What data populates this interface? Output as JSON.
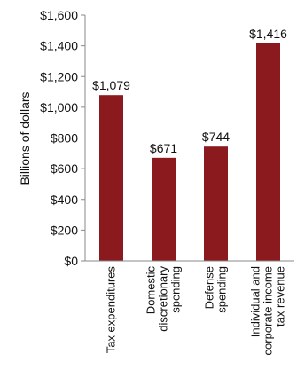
{
  "chart_data": {
    "type": "bar",
    "title": "",
    "xlabel": "",
    "ylabel": "Billions of dollars",
    "categories": [
      "Tax expenditures",
      "Domestic discretionary spending",
      "Defense spending",
      "Individual and corporate income tax revenue"
    ],
    "category_lines": [
      [
        "Tax expenditures"
      ],
      [
        "Domestic",
        "discretionary",
        "spending"
      ],
      [
        "Defense",
        "spending"
      ],
      [
        "Individual and",
        "corporate income",
        "tax revenue"
      ]
    ],
    "values": [
      1079,
      671,
      744,
      1416
    ],
    "value_labels": [
      "$1,079",
      "$671",
      "$744",
      "$1,416"
    ],
    "ylim": [
      0,
      1600
    ],
    "yticks": [
      0,
      200,
      400,
      600,
      800,
      1000,
      1200,
      1400,
      1600
    ],
    "ytick_labels": [
      "$0",
      "$200",
      "$400",
      "$600",
      "$800",
      "$1,000",
      "$1,200",
      "$1,400",
      "$1,600"
    ],
    "grid": false,
    "legend": "none",
    "bar_color": "#8b1a1f",
    "axis_color": "#888888"
  }
}
